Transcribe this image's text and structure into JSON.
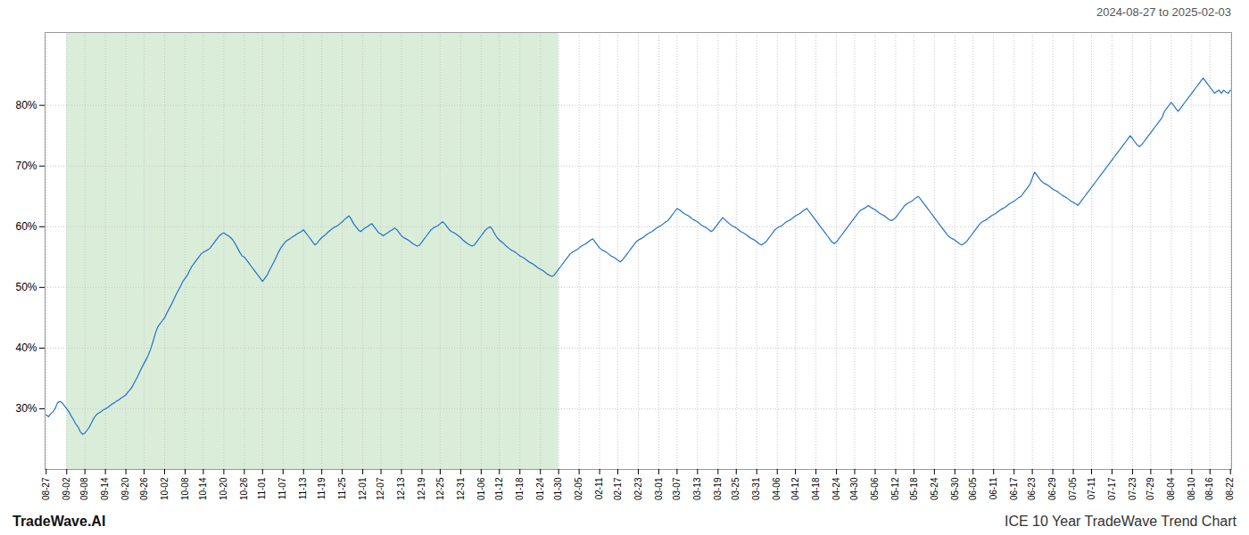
{
  "chart_data": {
    "type": "line",
    "title": "2024-08-27 to 2025-02-03",
    "annotations": [
      "TradeWave.AI",
      "ICE 10 Year TradeWave Trend Chart"
    ],
    "color": "#2472c8",
    "grid": true,
    "shaded_region": {
      "from": "09-02",
      "to": "01-30",
      "color": "#d9edd9"
    },
    "ylim": [
      20,
      92
    ],
    "yticks": [
      {
        "value": 30,
        "label": "30%"
      },
      {
        "value": 40,
        "label": "40%"
      },
      {
        "value": 50,
        "label": "50%"
      },
      {
        "value": 60,
        "label": "60%"
      },
      {
        "value": 70,
        "label": "70%"
      },
      {
        "value": 80,
        "label": "80%"
      }
    ],
    "categories": [
      "08-27",
      null,
      null,
      null,
      null,
      null,
      null,
      null,
      null,
      "09-02",
      null,
      null,
      null,
      null,
      null,
      null,
      null,
      "09-08",
      null,
      null,
      null,
      null,
      null,
      null,
      null,
      null,
      "09-14",
      null,
      null,
      null,
      null,
      null,
      null,
      null,
      null,
      "09-20",
      null,
      null,
      null,
      null,
      null,
      null,
      null,
      "09-26",
      null,
      null,
      null,
      null,
      null,
      null,
      null,
      null,
      "10-02",
      null,
      null,
      null,
      null,
      null,
      null,
      null,
      null,
      "10-08",
      null,
      null,
      null,
      null,
      null,
      null,
      null,
      "10-14",
      null,
      null,
      null,
      null,
      null,
      null,
      null,
      null,
      "10-20",
      null,
      null,
      null,
      null,
      null,
      null,
      null,
      null,
      "10-26",
      null,
      null,
      null,
      null,
      null,
      null,
      null,
      "11-01",
      null,
      null,
      null,
      null,
      null,
      null,
      null,
      null,
      "11-07",
      null,
      null,
      null,
      null,
      null,
      null,
      null,
      null,
      "11-13",
      null,
      null,
      null,
      null,
      null,
      null,
      null,
      "11-19",
      null,
      null,
      null,
      null,
      null,
      null,
      null,
      null,
      "11-25",
      null,
      null,
      null,
      null,
      null,
      null,
      null,
      null,
      "12-01",
      null,
      null,
      null,
      null,
      null,
      null,
      null,
      "12-07",
      null,
      null,
      null,
      null,
      null,
      null,
      null,
      null,
      "12-13",
      null,
      null,
      null,
      null,
      null,
      null,
      null,
      null,
      "12-19",
      null,
      null,
      null,
      null,
      null,
      null,
      null,
      "12-25",
      null,
      null,
      null,
      null,
      null,
      null,
      null,
      null,
      "12-31",
      null,
      null,
      null,
      null,
      null,
      null,
      null,
      null,
      "01-06",
      null,
      null,
      null,
      null,
      null,
      null,
      null,
      "01-12",
      null,
      null,
      null,
      null,
      null,
      null,
      null,
      null,
      "01-18",
      null,
      null,
      null,
      null,
      null,
      null,
      null,
      null,
      "01-24",
      null,
      null,
      null,
      null,
      null,
      null,
      null,
      "01-30",
      null,
      null,
      null,
      null,
      null,
      null,
      null,
      null,
      "02-05",
      null,
      null,
      null,
      null,
      null,
      null,
      null,
      null,
      "02-11",
      null,
      null,
      null,
      null,
      null,
      null,
      null,
      "02-17",
      null,
      null,
      null,
      null,
      null,
      null,
      null,
      null,
      "02-23",
      null,
      null,
      null,
      null,
      null,
      null,
      null,
      null,
      "03-01",
      null,
      null,
      null,
      null,
      null,
      null,
      null,
      "03-07",
      null,
      null,
      null,
      null,
      null,
      null,
      null,
      null,
      "03-13",
      null,
      null,
      null,
      null,
      null,
      null,
      null,
      null,
      "03-19",
      null,
      null,
      null,
      null,
      null,
      null,
      null,
      "03-25",
      null,
      null,
      null,
      null,
      null,
      null,
      null,
      null,
      "03-31",
      null,
      null,
      null,
      null,
      null,
      null,
      null,
      null,
      "04-06",
      null,
      null,
      null,
      null,
      null,
      null,
      null,
      "04-12",
      null,
      null,
      null,
      null,
      null,
      null,
      null,
      null,
      "04-18",
      null,
      null,
      null,
      null,
      null,
      null,
      null,
      null,
      "04-24",
      null,
      null,
      null,
      null,
      null,
      null,
      null,
      "04-30",
      null,
      null,
      null,
      null,
      null,
      null,
      null,
      null,
      "05-06",
      null,
      null,
      null,
      null,
      null,
      null,
      null,
      null,
      "05-12",
      null,
      null,
      null,
      null,
      null,
      null,
      null,
      "05-18",
      null,
      null,
      null,
      null,
      null,
      null,
      null,
      null,
      "05-24",
      null,
      null,
      null,
      null,
      null,
      null,
      null,
      null,
      "05-30",
      null,
      null,
      null,
      null,
      null,
      null,
      null,
      "06-05",
      null,
      null,
      null,
      null,
      null,
      null,
      null,
      null,
      "06-11",
      null,
      null,
      null,
      null,
      null,
      null,
      null,
      null,
      "06-17",
      null,
      null,
      null,
      null,
      null,
      null,
      null,
      "06-23",
      null,
      null,
      null,
      null,
      null,
      null,
      null,
      null,
      "06-29",
      null,
      null,
      null,
      null,
      null,
      null,
      null,
      null,
      "07-05",
      null,
      null,
      null,
      null,
      null,
      null,
      null,
      "07-11",
      null,
      null,
      null,
      null,
      null,
      null,
      null,
      null,
      "07-17",
      null,
      null,
      null,
      null,
      null,
      null,
      null,
      null,
      "07-23",
      null,
      null,
      null,
      null,
      null,
      null,
      null,
      "07-29",
      null,
      null,
      null,
      null,
      null,
      null,
      null,
      null,
      "08-04",
      null,
      null,
      null,
      null,
      null,
      null,
      null,
      null,
      "08-10",
      null,
      null,
      null,
      null,
      null,
      null,
      null,
      "08-16",
      null,
      null,
      null,
      null,
      null,
      null,
      null,
      null,
      "08-22"
    ],
    "values": [
      29.0,
      28.7,
      29.2,
      29.5,
      30.1,
      31.0,
      31.2,
      31.0,
      30.5,
      30.0,
      29.5,
      28.8,
      28.2,
      27.5,
      27.0,
      26.2,
      25.8,
      26.0,
      26.5,
      27.0,
      27.8,
      28.5,
      29.0,
      29.3,
      29.5,
      29.8,
      30.0,
      30.2,
      30.5,
      30.8,
      31.0,
      31.3,
      31.5,
      31.8,
      32.0,
      32.3,
      32.8,
      33.2,
      33.8,
      34.5,
      35.2,
      36.0,
      36.8,
      37.5,
      38.2,
      39.0,
      40.0,
      41.2,
      42.5,
      43.5,
      44.0,
      44.5,
      45.0,
      45.8,
      46.5,
      47.2,
      48.0,
      48.8,
      49.5,
      50.2,
      51.0,
      51.5,
      52.0,
      52.8,
      53.5,
      54.0,
      54.5,
      55.0,
      55.5,
      55.8,
      56.0,
      56.2,
      56.5,
      57.0,
      57.5,
      58.0,
      58.5,
      58.8,
      59.0,
      58.7,
      58.5,
      58.2,
      57.8,
      57.2,
      56.5,
      55.8,
      55.2,
      55.0,
      54.5,
      54.0,
      53.5,
      53.0,
      52.5,
      52.0,
      51.5,
      51.0,
      51.5,
      52.0,
      52.8,
      53.5,
      54.2,
      55.0,
      55.8,
      56.5,
      57.0,
      57.5,
      57.8,
      58.0,
      58.3,
      58.5,
      58.8,
      59.0,
      59.2,
      59.5,
      59.0,
      58.5,
      58.0,
      57.5,
      57.0,
      57.3,
      57.8,
      58.2,
      58.5,
      58.8,
      59.2,
      59.5,
      59.8,
      60.0,
      60.2,
      60.5,
      60.8,
      61.2,
      61.5,
      61.8,
      61.2,
      60.5,
      60.0,
      59.5,
      59.2,
      59.5,
      59.8,
      60.0,
      60.3,
      60.5,
      60.0,
      59.5,
      59.0,
      58.8,
      58.5,
      58.8,
      59.0,
      59.3,
      59.5,
      59.8,
      59.5,
      59.0,
      58.5,
      58.2,
      58.0,
      57.8,
      57.5,
      57.2,
      57.0,
      56.8,
      57.0,
      57.5,
      58.0,
      58.5,
      59.0,
      59.5,
      59.8,
      60.0,
      60.2,
      60.5,
      60.8,
      60.5,
      60.0,
      59.5,
      59.2,
      59.0,
      58.8,
      58.5,
      58.2,
      57.8,
      57.5,
      57.2,
      57.0,
      56.8,
      57.0,
      57.5,
      58.0,
      58.5,
      59.0,
      59.5,
      59.8,
      60.0,
      59.5,
      58.8,
      58.2,
      57.8,
      57.5,
      57.2,
      56.8,
      56.5,
      56.2,
      56.0,
      55.8,
      55.5,
      55.2,
      55.0,
      54.8,
      54.5,
      54.2,
      54.0,
      53.8,
      53.5,
      53.2,
      53.0,
      52.8,
      52.5,
      52.2,
      52.0,
      51.8,
      52.0,
      52.5,
      53.0,
      53.5,
      54.0,
      54.5,
      55.0,
      55.5,
      55.8,
      56.0,
      56.2,
      56.5,
      56.8,
      57.0,
      57.2,
      57.5,
      57.8,
      58.0,
      57.5,
      57.0,
      56.5,
      56.2,
      56.0,
      55.8,
      55.5,
      55.2,
      55.0,
      54.8,
      54.5,
      54.2,
      54.5,
      55.0,
      55.5,
      56.0,
      56.5,
      57.0,
      57.5,
      57.8,
      58.0,
      58.2,
      58.5,
      58.8,
      59.0,
      59.2,
      59.5,
      59.8,
      60.0,
      60.2,
      60.5,
      60.8,
      61.0,
      61.5,
      62.0,
      62.5,
      63.0,
      62.8,
      62.5,
      62.2,
      62.0,
      61.8,
      61.5,
      61.2,
      61.0,
      60.8,
      60.5,
      60.2,
      60.0,
      59.8,
      59.5,
      59.2,
      59.5,
      60.0,
      60.5,
      61.0,
      61.5,
      61.2,
      60.8,
      60.5,
      60.2,
      60.0,
      59.8,
      59.5,
      59.2,
      59.0,
      58.8,
      58.5,
      58.2,
      58.0,
      57.8,
      57.5,
      57.2,
      57.0,
      57.2,
      57.5,
      58.0,
      58.5,
      59.0,
      59.5,
      59.8,
      60.0,
      60.2,
      60.5,
      60.8,
      61.0,
      61.2,
      61.5,
      61.8,
      62.0,
      62.2,
      62.5,
      62.8,
      63.0,
      62.5,
      62.0,
      61.5,
      61.0,
      60.5,
      60.0,
      59.5,
      59.0,
      58.5,
      58.0,
      57.5,
      57.2,
      57.5,
      58.0,
      58.5,
      59.0,
      59.5,
      60.0,
      60.5,
      61.0,
      61.5,
      62.0,
      62.5,
      62.8,
      63.0,
      63.2,
      63.5,
      63.2,
      63.0,
      62.8,
      62.5,
      62.2,
      62.0,
      61.8,
      61.5,
      61.2,
      61.0,
      61.2,
      61.5,
      62.0,
      62.5,
      63.0,
      63.5,
      63.8,
      64.0,
      64.2,
      64.5,
      64.8,
      65.0,
      64.5,
      64.0,
      63.5,
      63.0,
      62.5,
      62.0,
      61.5,
      61.0,
      60.5,
      60.0,
      59.5,
      59.0,
      58.5,
      58.2,
      58.0,
      57.8,
      57.5,
      57.2,
      57.0,
      57.2,
      57.5,
      58.0,
      58.5,
      59.0,
      59.5,
      60.0,
      60.5,
      60.8,
      61.0,
      61.2,
      61.5,
      61.8,
      62.0,
      62.2,
      62.5,
      62.8,
      63.0,
      63.2,
      63.5,
      63.8,
      64.0,
      64.2,
      64.5,
      64.8,
      65.0,
      65.5,
      66.0,
      66.5,
      67.0,
      68.0,
      69.0,
      68.5,
      68.0,
      67.5,
      67.2,
      67.0,
      66.8,
      66.5,
      66.2,
      66.0,
      65.8,
      65.5,
      65.2,
      65.0,
      64.8,
      64.5,
      64.2,
      64.0,
      63.8,
      63.5,
      64.0,
      64.5,
      65.0,
      65.5,
      66.0,
      66.5,
      67.0,
      67.5,
      68.0,
      68.5,
      69.0,
      69.5,
      70.0,
      70.5,
      71.0,
      71.5,
      72.0,
      72.5,
      73.0,
      73.5,
      74.0,
      74.5,
      75.0,
      74.5,
      74.0,
      73.5,
      73.2,
      73.5,
      74.0,
      74.5,
      75.0,
      75.5,
      76.0,
      76.5,
      77.0,
      77.5,
      78.0,
      79.0,
      79.5,
      80.0,
      80.5,
      80.0,
      79.5,
      79.0,
      79.5,
      80.0,
      80.5,
      81.0,
      81.5,
      82.0,
      82.5,
      83.0,
      83.5,
      84.0,
      84.5,
      84.0,
      83.5,
      83.0,
      82.5,
      82.0,
      82.3,
      82.5,
      82.0,
      82.5,
      82.2,
      82.0,
      82.5
    ]
  }
}
